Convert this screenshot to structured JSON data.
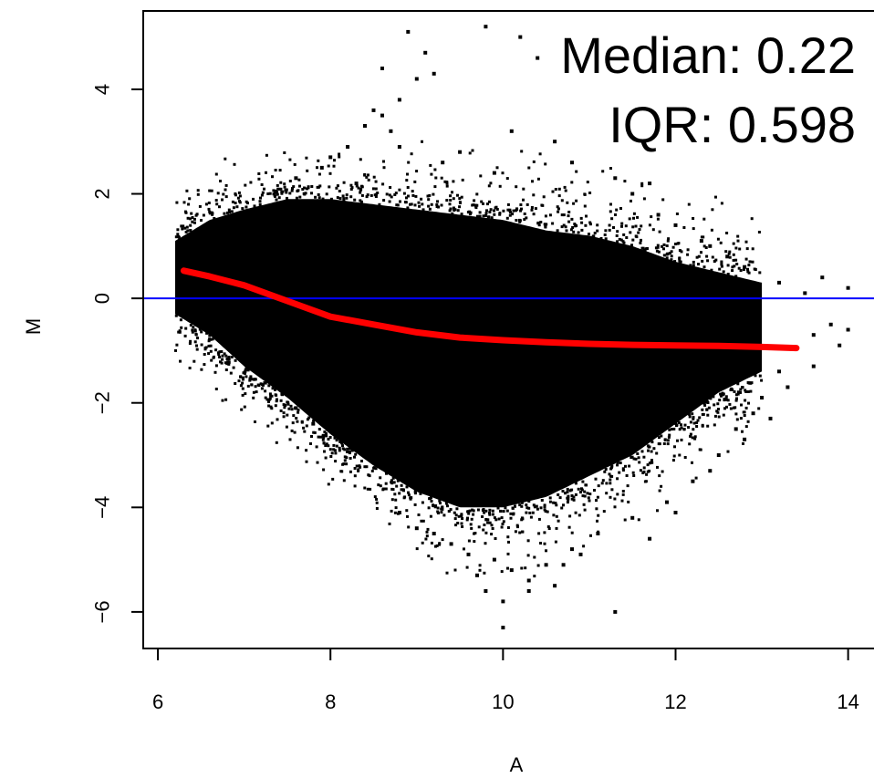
{
  "chart_data": {
    "type": "scatter",
    "title": "",
    "xlabel": "A",
    "ylabel": "M",
    "xlim": [
      5.83,
      14.3
    ],
    "ylim": [
      -6.7,
      5.5
    ],
    "x_ticks": [
      6,
      8,
      10,
      12,
      14
    ],
    "y_ticks": [
      -6,
      -4,
      -2,
      0,
      2,
      4
    ],
    "x_tick_labels": [
      "6",
      "8",
      "10",
      "12",
      "14"
    ],
    "y_tick_labels": [
      "−6",
      "−4",
      "−2",
      "0",
      "2",
      "4"
    ],
    "grid": false,
    "annotations": [
      "Median: 0.22",
      "IQR: 0.598"
    ],
    "reference_line": {
      "y": 0,
      "color": "#0000ff"
    },
    "point_color": "#000000",
    "loess_fit": {
      "color": "#ff0000",
      "x": [
        6.3,
        6.6,
        7.0,
        7.5,
        8.0,
        8.5,
        9.0,
        9.5,
        10.0,
        10.5,
        11.0,
        11.5,
        12.0,
        12.5,
        13.0,
        13.4
      ],
      "y": [
        0.53,
        0.42,
        0.25,
        -0.05,
        -0.35,
        -0.5,
        -0.65,
        -0.75,
        -0.8,
        -0.84,
        -0.87,
        -0.89,
        -0.9,
        -0.91,
        -0.93,
        -0.95
      ]
    },
    "point_cloud_envelope": {
      "x": [
        6.2,
        6.6,
        7.0,
        7.5,
        8.0,
        8.5,
        9.0,
        9.5,
        10.0,
        10.5,
        11.0,
        11.5,
        12.0,
        12.5,
        13.0
      ],
      "upper": [
        1.1,
        1.5,
        1.7,
        1.9,
        1.9,
        1.8,
        1.7,
        1.6,
        1.5,
        1.3,
        1.2,
        1.0,
        0.7,
        0.5,
        0.3
      ],
      "lower": [
        -0.3,
        -0.7,
        -1.3,
        -1.9,
        -2.6,
        -3.2,
        -3.7,
        -4.0,
        -4.0,
        -3.8,
        -3.4,
        -3.0,
        -2.4,
        -1.8,
        -1.4
      ]
    },
    "outlier_points": [
      {
        "x": 7.9,
        "y": 2.5
      },
      {
        "x": 8.2,
        "y": 2.9
      },
      {
        "x": 8.4,
        "y": 3.3
      },
      {
        "x": 8.5,
        "y": 3.6
      },
      {
        "x": 8.6,
        "y": 3.5
      },
      {
        "x": 8.7,
        "y": 3.2
      },
      {
        "x": 8.6,
        "y": 4.4
      },
      {
        "x": 8.8,
        "y": 3.8
      },
      {
        "x": 9.0,
        "y": 4.2
      },
      {
        "x": 9.2,
        "y": 4.3
      },
      {
        "x": 8.9,
        "y": 5.1
      },
      {
        "x": 9.1,
        "y": 4.7
      },
      {
        "x": 9.8,
        "y": 5.2
      },
      {
        "x": 10.2,
        "y": 5.0
      },
      {
        "x": 10.4,
        "y": 4.6
      },
      {
        "x": 10.1,
        "y": 3.2
      },
      {
        "x": 8.3,
        "y": 2.2
      },
      {
        "x": 8.0,
        "y": 2.7
      },
      {
        "x": 7.6,
        "y": 2.3
      },
      {
        "x": 9.5,
        "y": 2.8
      },
      {
        "x": 9.9,
        "y": 2.4
      },
      {
        "x": 10.8,
        "y": 2.6
      },
      {
        "x": 11.3,
        "y": 2.3
      },
      {
        "x": 11.7,
        "y": 2.2
      },
      {
        "x": 10.6,
        "y": 3.0
      },
      {
        "x": 9.3,
        "y": 2.6
      },
      {
        "x": 8.8,
        "y": 2.9
      },
      {
        "x": 12.3,
        "y": 1.1
      },
      {
        "x": 12.6,
        "y": 0.8
      },
      {
        "x": 12.8,
        "y": 0.6
      },
      {
        "x": 13.2,
        "y": 0.3
      },
      {
        "x": 13.5,
        "y": 0.1
      },
      {
        "x": 13.6,
        "y": -0.7
      },
      {
        "x": 13.8,
        "y": -0.5
      },
      {
        "x": 14.0,
        "y": -0.6
      },
      {
        "x": 13.2,
        "y": -1.4
      },
      {
        "x": 13.0,
        "y": -1.9
      },
      {
        "x": 12.9,
        "y": -2.2
      },
      {
        "x": 12.7,
        "y": -2.5
      },
      {
        "x": 12.5,
        "y": -3.0
      },
      {
        "x": 12.2,
        "y": -3.5
      },
      {
        "x": 11.9,
        "y": -3.9
      },
      {
        "x": 11.5,
        "y": -4.2
      },
      {
        "x": 11.1,
        "y": -4.5
      },
      {
        "x": 10.8,
        "y": -4.8
      },
      {
        "x": 10.5,
        "y": -5.1
      },
      {
        "x": 10.3,
        "y": -5.4
      },
      {
        "x": 10.1,
        "y": -5.2
      },
      {
        "x": 9.9,
        "y": -5.0
      },
      {
        "x": 9.7,
        "y": -5.3
      },
      {
        "x": 9.6,
        "y": -4.9
      },
      {
        "x": 9.4,
        "y": -4.7
      },
      {
        "x": 9.2,
        "y": -4.5
      },
      {
        "x": 9.0,
        "y": -4.4
      },
      {
        "x": 8.8,
        "y": -4.1
      },
      {
        "x": 10.0,
        "y": -5.8
      },
      {
        "x": 10.3,
        "y": -5.6
      },
      {
        "x": 10.7,
        "y": -5.1
      },
      {
        "x": 10.9,
        "y": -4.9
      },
      {
        "x": 11.3,
        "y": -6.0
      },
      {
        "x": 10.0,
        "y": -6.3
      },
      {
        "x": 10.6,
        "y": -5.5
      },
      {
        "x": 9.8,
        "y": -5.6
      },
      {
        "x": 11.7,
        "y": -4.6
      },
      {
        "x": 12.0,
        "y": -4.1
      },
      {
        "x": 12.4,
        "y": -3.3
      },
      {
        "x": 12.8,
        "y": -2.7
      },
      {
        "x": 13.1,
        "y": -2.3
      },
      {
        "x": 13.3,
        "y": -1.7
      },
      {
        "x": 13.6,
        "y": -1.3
      },
      {
        "x": 13.9,
        "y": -0.9
      },
      {
        "x": 14.0,
        "y": 0.2
      },
      {
        "x": 13.7,
        "y": 0.4
      },
      {
        "x": 12.4,
        "y": 1.0
      },
      {
        "x": 11.8,
        "y": 1.6
      },
      {
        "x": 11.5,
        "y": 2.0
      },
      {
        "x": 12.0,
        "y": 1.4
      },
      {
        "x": 6.4,
        "y": -0.3
      },
      {
        "x": 6.7,
        "y": -0.6
      },
      {
        "x": 7.1,
        "y": -1.2
      },
      {
        "x": 7.3,
        "y": -1.6
      },
      {
        "x": 7.6,
        "y": -2.1
      },
      {
        "x": 7.8,
        "y": -2.4
      }
    ]
  }
}
